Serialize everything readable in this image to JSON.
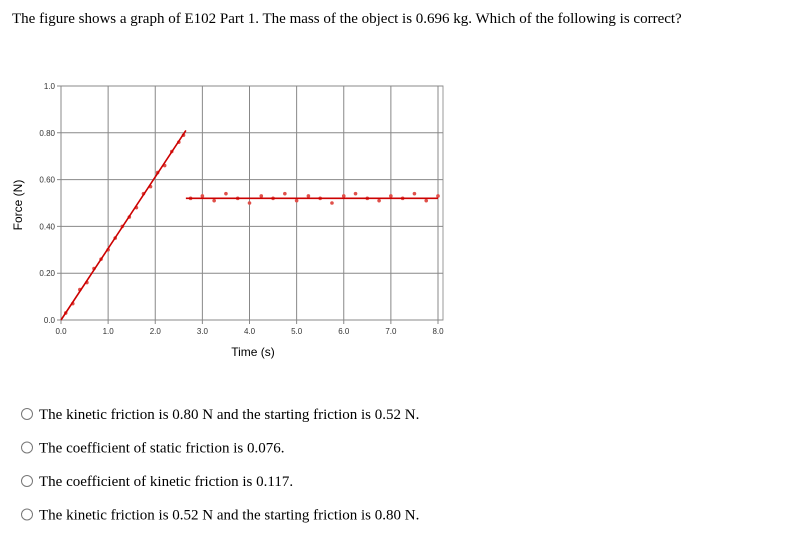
{
  "question": "The figure shows a graph of E102 Part 1.  The mass of the object is 0.696 kg.  Which of the following is correct?",
  "chart_data": {
    "type": "line",
    "xlabel": "Time (s)",
    "ylabel": "Force (N)",
    "xlim": [
      0,
      8
    ],
    "ylim": [
      0,
      1
    ],
    "xticks": [
      {
        "value": 0,
        "label": "0.0"
      },
      {
        "value": 1,
        "label": "1.0"
      },
      {
        "value": 2,
        "label": "2.0"
      },
      {
        "value": 3,
        "label": "3.0"
      },
      {
        "value": 4,
        "label": "4.0"
      },
      {
        "value": 5,
        "label": "5.0"
      },
      {
        "value": 6,
        "label": "6.0"
      },
      {
        "value": 7,
        "label": "7.0"
      },
      {
        "value": 8,
        "label": "8.0"
      }
    ],
    "yticks": [
      {
        "value": 0,
        "label": "0.0"
      },
      {
        "value": 0.2,
        "label": "0.20"
      },
      {
        "value": 0.4,
        "label": "0.40"
      },
      {
        "value": 0.6,
        "label": "0.60"
      },
      {
        "value": 0.8,
        "label": "0.80"
      },
      {
        "value": 1,
        "label": "1.0"
      }
    ],
    "grid": true,
    "series": [
      {
        "color": "#e0504a",
        "mode": "markers",
        "x": [
          0.1,
          0.25,
          0.4,
          0.55,
          0.7,
          0.85,
          1.0,
          1.15,
          1.3,
          1.45,
          1.6,
          1.75,
          1.9,
          2.05,
          2.2,
          2.35,
          2.5,
          2.6,
          2.75,
          3.0,
          3.25,
          3.5,
          3.75,
          4.0,
          4.25,
          4.5,
          4.75,
          5.0,
          5.25,
          5.5,
          5.75,
          6.0,
          6.25,
          6.5,
          6.75,
          7.0,
          7.25,
          7.5,
          7.75,
          8.0
        ],
        "values": [
          0.03,
          0.07,
          0.13,
          0.16,
          0.22,
          0.26,
          0.3,
          0.35,
          0.4,
          0.44,
          0.48,
          0.54,
          0.57,
          0.63,
          0.66,
          0.72,
          0.76,
          0.79,
          0.52,
          0.53,
          0.51,
          0.54,
          0.52,
          0.5,
          0.53,
          0.52,
          0.54,
          0.51,
          0.53,
          0.52,
          0.5,
          0.53,
          0.54,
          0.52,
          0.51,
          0.53,
          0.52,
          0.54,
          0.51,
          0.53
        ]
      },
      {
        "color": "#cc0000",
        "mode": "line",
        "x": [
          0,
          2.65
        ],
        "values": [
          0,
          0.81
        ]
      },
      {
        "color": "#cc0000",
        "mode": "line",
        "x": [
          2.65,
          8.0
        ],
        "values": [
          0.52,
          0.52
        ]
      }
    ]
  },
  "options": [
    "The kinetic friction is 0.80 N and the starting friction is 0.52 N.",
    "The coefficient of static friction is 0.076.",
    "The coefficient of kinetic friction is 0.117.",
    "The kinetic friction is 0.52 N and the starting friction is 0.80 N."
  ]
}
